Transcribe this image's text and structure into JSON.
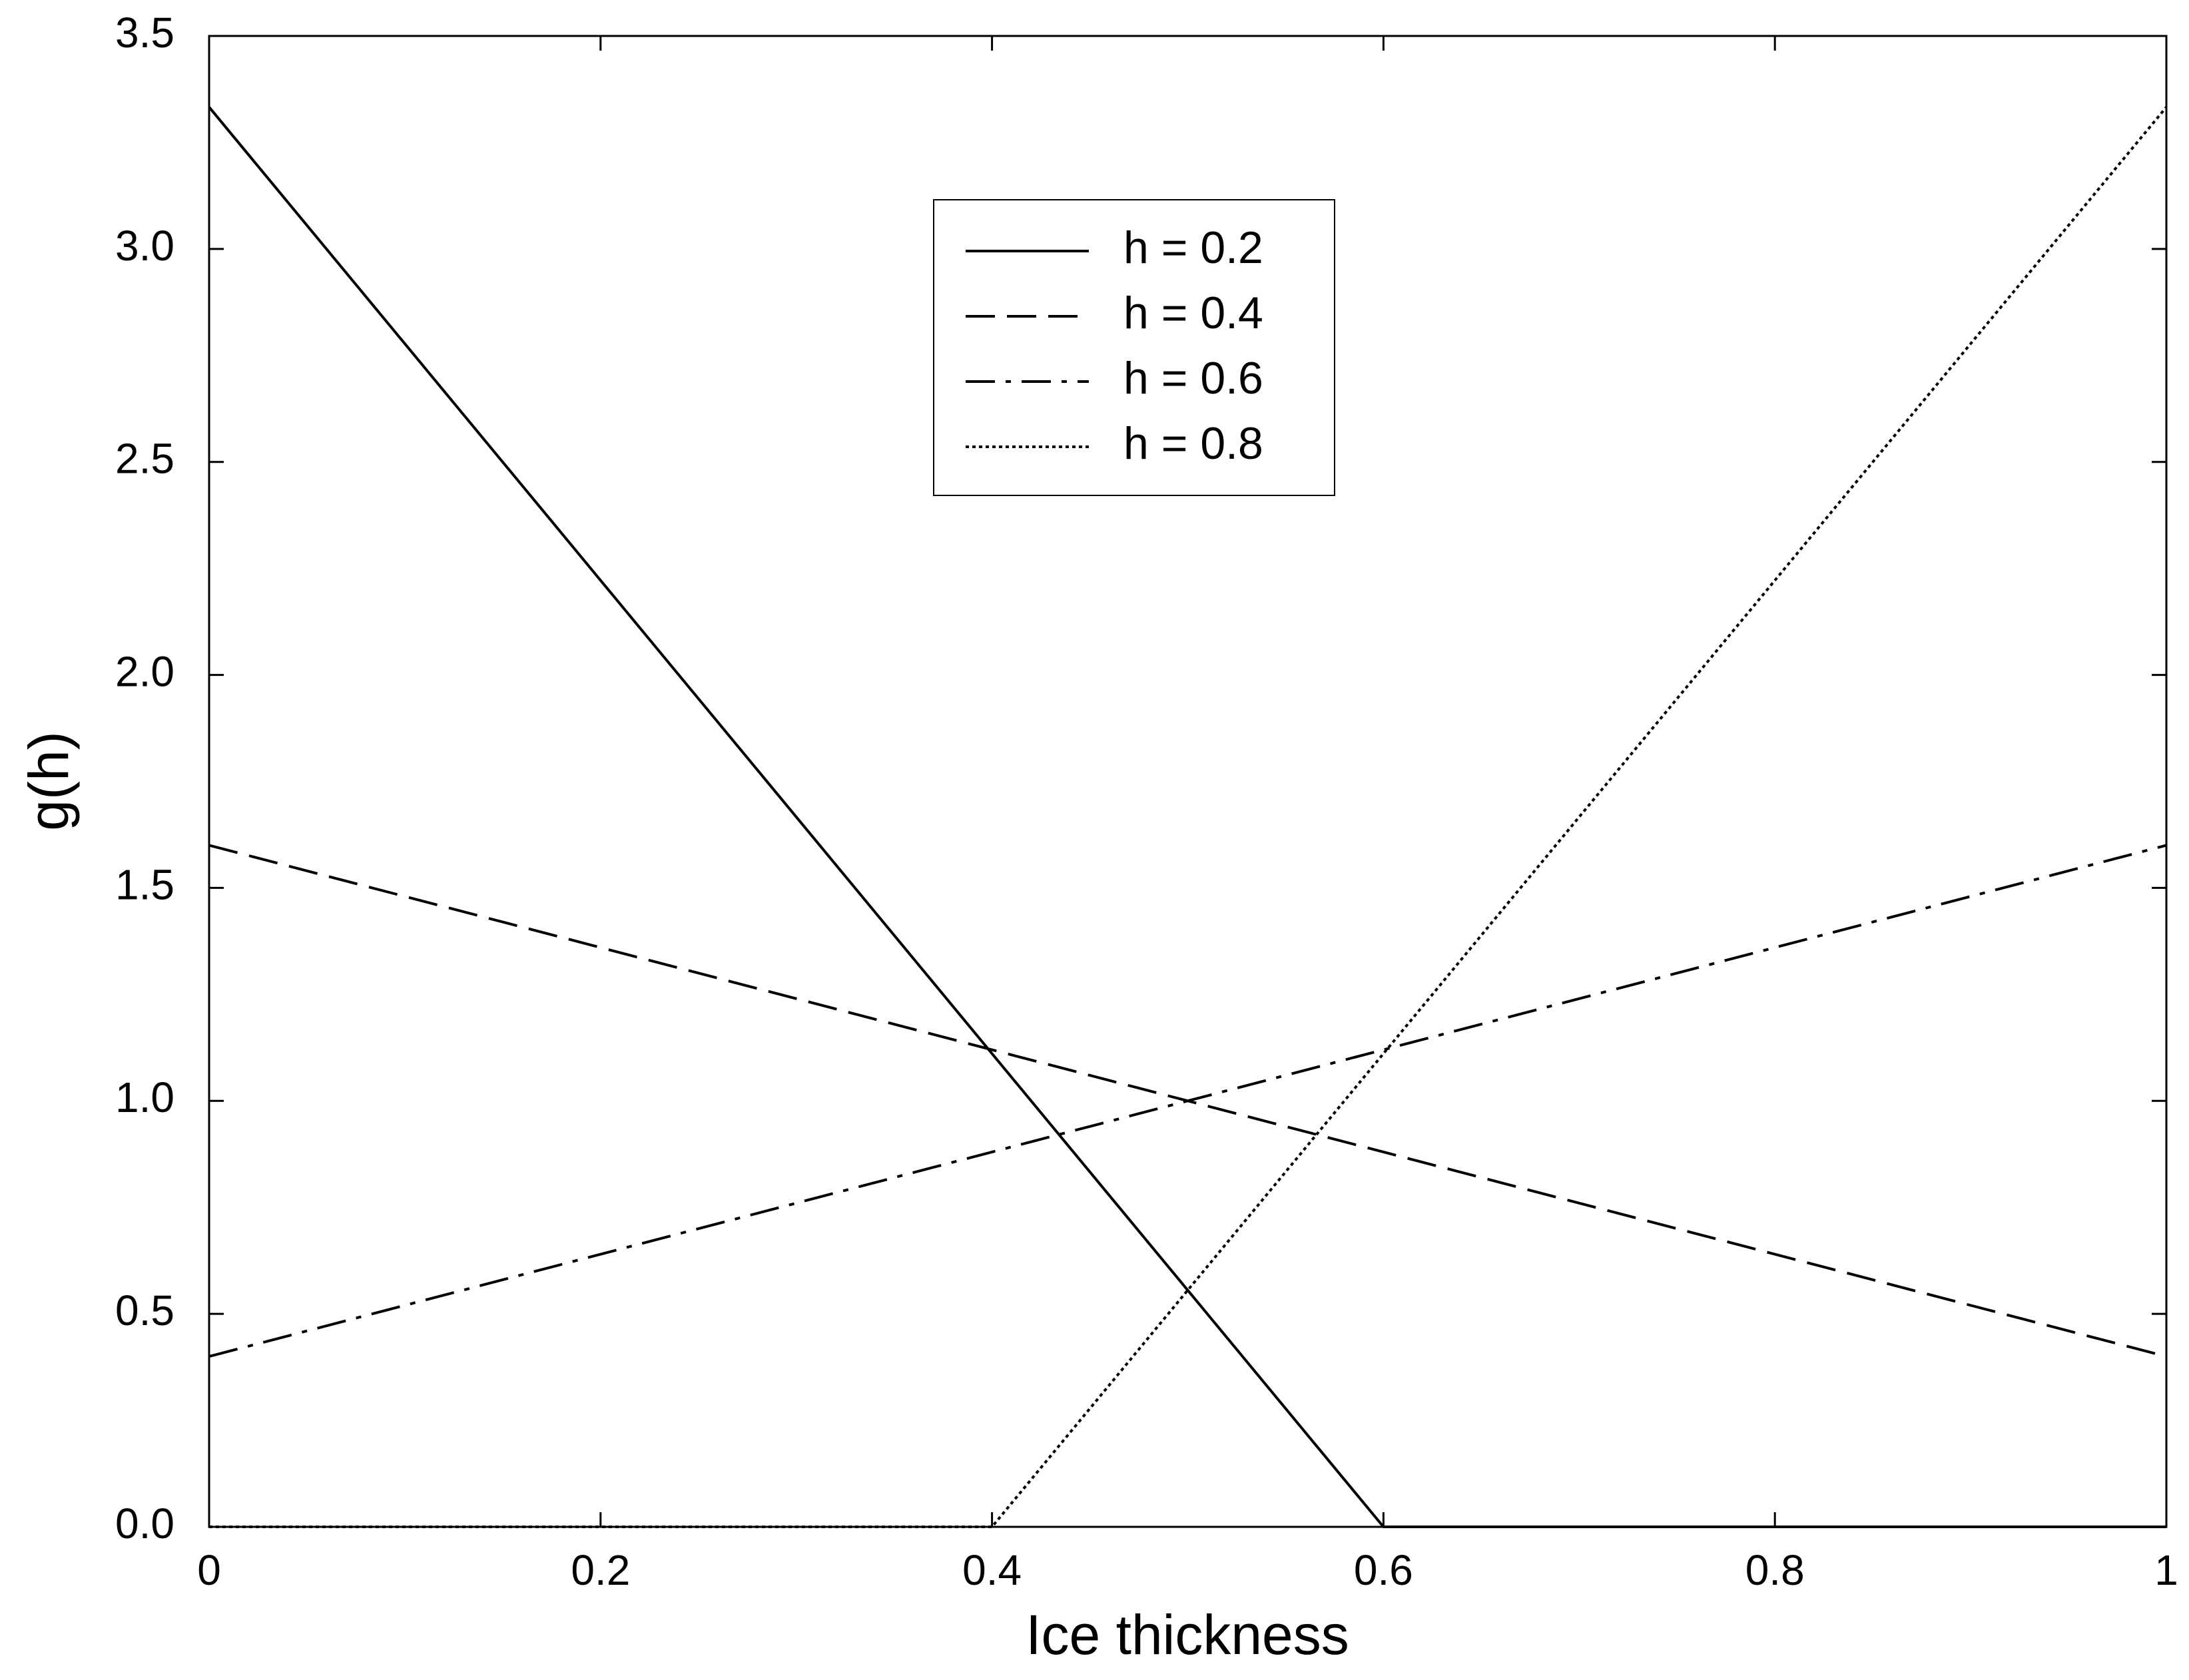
{
  "chart_data": {
    "type": "line",
    "x_label": "Ice thickness",
    "y_label": "g(h)",
    "xlim": [
      0,
      1
    ],
    "ylim": [
      0,
      3.5
    ],
    "xticks": [
      0,
      0.2,
      0.4,
      0.6,
      0.8,
      1
    ],
    "yticks": [
      {
        "value": 0,
        "label": "0.0"
      },
      0.5,
      {
        "value": 1,
        "label": "1.0"
      },
      1.5,
      {
        "value": 2,
        "label": "2.0"
      },
      2.5,
      {
        "value": 3,
        "label": "3.0"
      },
      3.5
    ],
    "grid": false,
    "legend": "top-center",
    "series": [
      {
        "name": "h = 0.2",
        "color": "#000000",
        "dash": "solid",
        "x": [
          0,
          0.6,
          1
        ],
        "values": [
          3.333,
          0,
          0
        ]
      },
      {
        "name": "h = 0.4",
        "color": "#000000",
        "dash": "dashed",
        "x": [
          0,
          1
        ],
        "values": [
          1.6,
          0.4
        ]
      },
      {
        "name": "h = 0.6",
        "color": "#000000",
        "dash": "dashdot",
        "x": [
          0,
          1
        ],
        "values": [
          0.4,
          1.6
        ]
      },
      {
        "name": "h = 0.8",
        "color": "#000000",
        "dash": "dotted",
        "x": [
          0,
          0.4,
          1
        ],
        "values": [
          0,
          0,
          3.333
        ]
      }
    ]
  }
}
